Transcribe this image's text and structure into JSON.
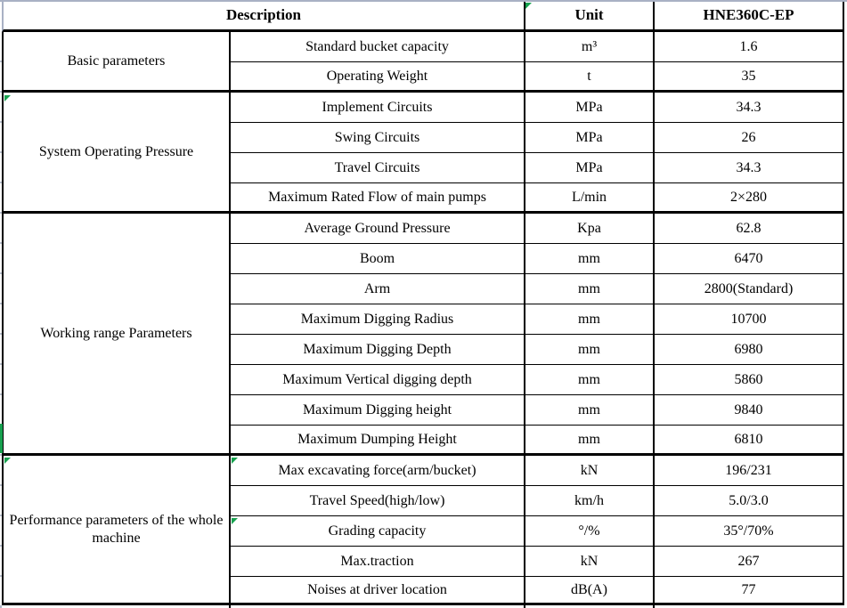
{
  "table": {
    "header": {
      "description": "Description",
      "unit": "Unit",
      "model": "HNE360C-EP"
    },
    "sections": [
      {
        "category": "Basic parameters",
        "rows": [
          {
            "param": "Standard bucket capacity",
            "unit": "m³",
            "value": "1.6"
          },
          {
            "param": "Operating Weight",
            "unit": "t",
            "value": "35"
          }
        ]
      },
      {
        "category": "System Operating Pressure",
        "rows": [
          {
            "param": "Implement Circuits",
            "unit": "MPa",
            "value": "34.3"
          },
          {
            "param": "Swing Circuits",
            "unit": "MPa",
            "value": "26"
          },
          {
            "param": "Travel Circuits",
            "unit": "MPa",
            "value": "34.3"
          },
          {
            "param": "Maximum Rated Flow of main pumps",
            "unit": "L/min",
            "value": "2×280"
          }
        ]
      },
      {
        "category": "Working range Parameters",
        "rows": [
          {
            "param": "Average Ground Pressure",
            "unit": "Kpa",
            "value": "62.8"
          },
          {
            "param": "Boom",
            "unit": "mm",
            "value": "6470"
          },
          {
            "param": "Arm",
            "unit": "mm",
            "value": "2800(Standard)"
          },
          {
            "param": "Maximum Digging Radius",
            "unit": "mm",
            "value": "10700"
          },
          {
            "param": "Maximum Digging Depth",
            "unit": "mm",
            "value": "6980"
          },
          {
            "param": "Maximum Vertical digging depth",
            "unit": "mm",
            "value": "5860"
          },
          {
            "param": "Maximum Digging height",
            "unit": "mm",
            "value": "9840"
          },
          {
            "param": "Maximum Dumping Height",
            "unit": "mm",
            "value": "6810"
          }
        ]
      },
      {
        "category": "Performance parameters of the whole machine",
        "rows": [
          {
            "param": "Max excavating force(arm/bucket)",
            "unit": "kN",
            "value": "196/231"
          },
          {
            "param": "Travel Speed(high/low)",
            "unit": "km/h",
            "value": "5.0/3.0"
          },
          {
            "param": "Grading capacity",
            "unit": "°/%",
            "value": "35°/70%"
          },
          {
            "param": "Max.traction",
            "unit": "kN",
            "value": "267"
          },
          {
            "param": "Noises at driver location",
            "unit": "dB(A)",
            "value": "77"
          }
        ]
      }
    ],
    "colors": {
      "table_border": "#000000",
      "top_gridline": "#a9b1c4",
      "marker_green": "#17a14f"
    }
  }
}
